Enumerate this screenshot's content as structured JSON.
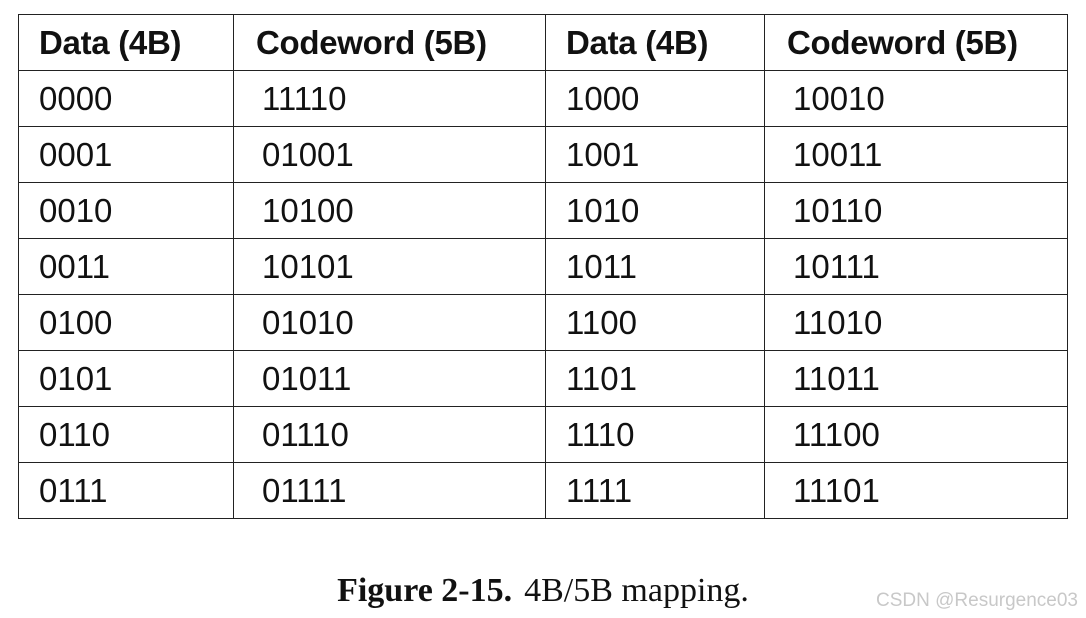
{
  "table": {
    "headers": [
      "Data (4B)",
      "Codeword (5B)",
      "Data (4B)",
      "Codeword (5B)"
    ],
    "rows": [
      [
        "0000",
        "11110",
        "1000",
        "10010"
      ],
      [
        "0001",
        "01001",
        "1001",
        "10011"
      ],
      [
        "0010",
        "10100",
        "1010",
        "10110"
      ],
      [
        "0011",
        "10101",
        "1011",
        "10111"
      ],
      [
        "0100",
        "01010",
        "1100",
        "11010"
      ],
      [
        "0101",
        "01011",
        "1101",
        "11011"
      ],
      [
        "0110",
        "01110",
        "1110",
        "11100"
      ],
      [
        "0111",
        "01111",
        "1111",
        "11101"
      ]
    ]
  },
  "caption": {
    "label": "Figure 2-15.",
    "text": "4B/5B mapping."
  },
  "watermark": "CSDN @Resurgence03"
}
